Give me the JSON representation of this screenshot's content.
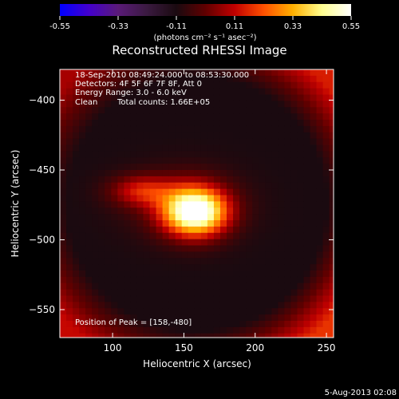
{
  "chart_data": {
    "type": "heatmap",
    "title": "Reconstructed RHESSI Image",
    "xlabel": "Heliocentric X (arcsec)",
    "ylabel": "Heliocentric Y (arcsec)",
    "xlim": [
      63,
      255
    ],
    "ylim": [
      -570,
      -378
    ],
    "x_ticks": [
      100,
      150,
      200,
      250
    ],
    "y_ticks": [
      -400,
      -450,
      -500,
      -550
    ],
    "colorbar": {
      "range": [
        -0.55,
        0.55
      ],
      "ticks": [
        "-0.55",
        "-0.33",
        "-0.11",
        "0.11",
        "0.33",
        "0.55"
      ],
      "unit_label": "(photons cm⁻² s⁻¹ asec⁻²)",
      "palette": [
        "#0000ff",
        "#4400cc",
        "#5a1a78",
        "#3a1a40",
        "#1a0a10",
        "#600000",
        "#c00000",
        "#ff5000",
        "#ffb000",
        "#ffff90",
        "#ffffff"
      ]
    },
    "annotations": {
      "time_range": "18-Sep-2010 08:49:24.000 to 08:53:30.000",
      "detectors": "Detectors: 4F 5F 6F 7F 8F, Att 0",
      "energy_range": "Energy Range: 3.0 - 6.0 keV",
      "clean_label": "Clean",
      "total_counts": "Total counts: 1.66E+05",
      "peak": "Position of Peak = [158,-480]"
    },
    "peak": {
      "x": 158,
      "y": -480,
      "value": 0.55
    },
    "secondary_emission": {
      "x": 120,
      "y": -465,
      "value": 0.33
    },
    "corner_levels": {
      "top_left": 0.08,
      "top_right": 0.15,
      "bottom_left": 0.12,
      "bottom_right": 0.18
    },
    "halo_level": -0.11
  },
  "footer": {
    "date": "5-Aug-2013 02:08"
  }
}
